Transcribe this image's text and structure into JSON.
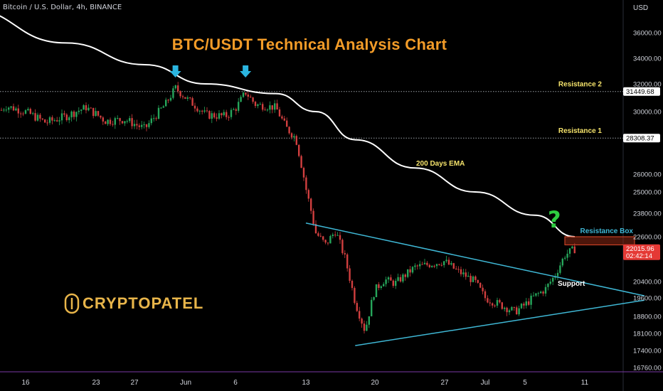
{
  "header": {
    "symbol_line": "Bitcoin / U.S. Dollar, 4h, BINANCE"
  },
  "title": "BTC/USDT Technical Analysis Chart",
  "logo": {
    "text": "CRYPTOPATEL"
  },
  "question_mark": "?",
  "colors": {
    "background": "#000000",
    "up": "#26a65b",
    "down": "#d13f3f",
    "ema": "#ffffff",
    "triangle": "#3fb8d6",
    "title": "#f39c28",
    "annotation": "#f5e36b",
    "axis_text": "#d1d4dc",
    "arrow": "#2bb5e0",
    "price_tag": "#e53935"
  },
  "chart_data": {
    "type": "candlestick",
    "currency_label": "USD",
    "y_ticks": [
      "36000.00",
      "34000.00",
      "32000.00",
      "30000.00",
      "26000.00",
      "25000.00",
      "23800.00",
      "22600.00",
      "20400.00",
      "19600.00",
      "18800.00",
      "18100.00",
      "17400.00",
      "16760.00"
    ],
    "x_ticks": [
      "16",
      "23",
      "27",
      "Jun",
      "6",
      "13",
      "20",
      "27",
      "Jul",
      "5",
      "11"
    ],
    "price_tags": [
      {
        "label": "31449.68",
        "value": 31449.68,
        "style": "white"
      },
      {
        "label": "28308.37",
        "value": 28308.37,
        "style": "white"
      },
      {
        "label": "22015.96",
        "value": 22015.96,
        "style": "red",
        "sub": "02:42:14"
      }
    ],
    "levels": [
      {
        "name": "Resistance 2",
        "value": 31449.68
      },
      {
        "name": "Resistance 1",
        "value": 28308.37
      }
    ],
    "annotations": [
      {
        "text": "200 Days EMA"
      },
      {
        "text": "Resistance Box"
      },
      {
        "text": "Support"
      }
    ],
    "ema_200": {
      "label": "200 Days EMA",
      "points": [
        [
          "2022-05-10",
          37900
        ],
        [
          "2022-05-20",
          35200
        ],
        [
          "2022-05-28",
          33500
        ],
        [
          "2022-06-03",
          32000
        ],
        [
          "2022-06-10",
          31300
        ],
        [
          "2022-06-14",
          30000
        ],
        [
          "2022-06-18",
          28200
        ],
        [
          "2022-06-24",
          26400
        ],
        [
          "2022-06-30",
          25000
        ],
        [
          "2022-07-06",
          23700
        ],
        [
          "2022-07-10",
          22600
        ]
      ]
    },
    "resistance_box": {
      "low": 22200,
      "high": 22600,
      "start": "2022-07-09",
      "end": "2022-07-16"
    },
    "triangle": {
      "upper": [
        [
          "2022-06-13",
          23300
        ],
        [
          "2022-07-17",
          19700
        ]
      ],
      "lower": [
        [
          "2022-06-18",
          17600
        ],
        [
          "2022-07-17",
          19500
        ]
      ]
    },
    "arrows": [
      "2022-05-31",
      "2022-06-07"
    ],
    "candles_summary": [
      [
        "2022-05-10",
        29800
      ],
      [
        "2022-05-12",
        29000
      ],
      [
        "2022-05-14",
        30400
      ],
      [
        "2022-05-16",
        30000
      ],
      [
        "2022-05-18",
        29300
      ],
      [
        "2022-05-20",
        29700
      ],
      [
        "2022-05-22",
        30300
      ],
      [
        "2022-05-24",
        29400
      ],
      [
        "2022-05-26",
        29500
      ],
      [
        "2022-05-28",
        28900
      ],
      [
        "2022-05-30",
        30500
      ],
      [
        "2022-05-31",
        31700
      ],
      [
        "2022-06-01",
        31000
      ],
      [
        "2022-06-03",
        29800
      ],
      [
        "2022-06-05",
        29700
      ],
      [
        "2022-06-06",
        30200
      ],
      [
        "2022-06-07",
        31400
      ],
      [
        "2022-06-08",
        30500
      ],
      [
        "2022-06-10",
        30300
      ],
      [
        "2022-06-11",
        29000
      ],
      [
        "2022-06-12",
        28300
      ],
      [
        "2022-06-13",
        25200
      ],
      [
        "2022-06-14",
        22800
      ],
      [
        "2022-06-15",
        22200
      ],
      [
        "2022-06-16",
        22900
      ],
      [
        "2022-06-17",
        21500
      ],
      [
        "2022-06-18",
        19400
      ],
      [
        "2022-06-19",
        18200
      ],
      [
        "2022-06-20",
        20000
      ],
      [
        "2022-06-21",
        20500
      ],
      [
        "2022-06-22",
        20300
      ],
      [
        "2022-06-24",
        21100
      ],
      [
        "2022-06-26",
        21300
      ],
      [
        "2022-06-27",
        21400
      ],
      [
        "2022-06-28",
        21000
      ],
      [
        "2022-06-30",
        20400
      ],
      [
        "2022-07-01",
        19600
      ],
      [
        "2022-07-03",
        19200
      ],
      [
        "2022-07-04",
        19000
      ],
      [
        "2022-07-05",
        19300
      ],
      [
        "2022-07-06",
        19700
      ],
      [
        "2022-07-07",
        20000
      ],
      [
        "2022-07-08",
        20700
      ],
      [
        "2022-07-09",
        21700
      ],
      [
        "2022-07-10",
        22000
      ]
    ]
  }
}
